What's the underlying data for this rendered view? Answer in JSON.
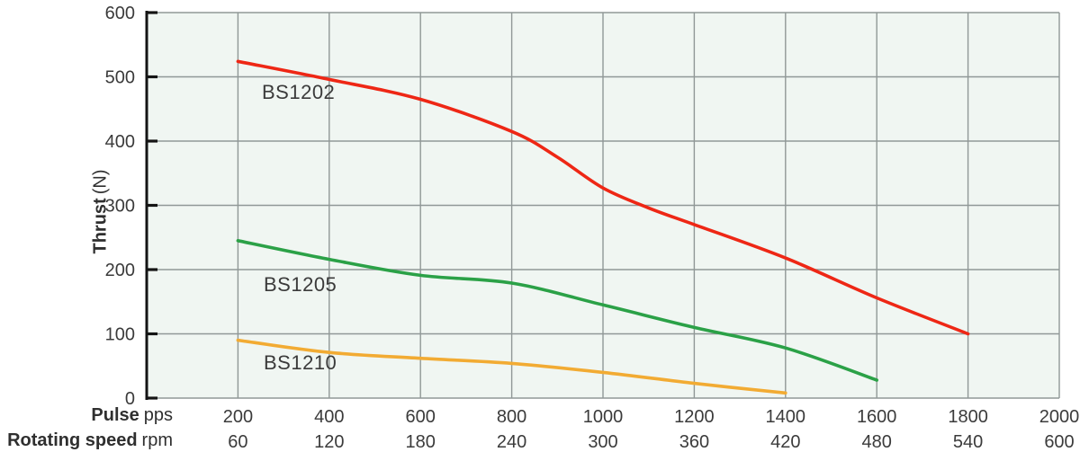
{
  "chart_data": {
    "type": "line",
    "title": "",
    "grid": true,
    "legend_position": "inline-labels",
    "x_axis": {
      "range": [
        0,
        2000
      ],
      "rows": [
        {
          "label": "Pulse",
          "unit": "pps",
          "ticks": [
            200,
            400,
            600,
            800,
            1000,
            1200,
            1400,
            1600,
            1800,
            2000
          ]
        },
        {
          "label": "Rotating speed",
          "unit": "rpm",
          "ticks": [
            60,
            120,
            180,
            240,
            300,
            360,
            420,
            480,
            540,
            600
          ]
        }
      ]
    },
    "y_axis": {
      "label": "Thrust",
      "unit": "(N)",
      "range": [
        0,
        600
      ],
      "ticks": [
        0,
        100,
        200,
        300,
        400,
        500,
        600
      ]
    },
    "series": [
      {
        "name": "BS1202",
        "color": "#ee2715",
        "points": [
          [
            200,
            524
          ],
          [
            400,
            496
          ],
          [
            600,
            465
          ],
          [
            800,
            415
          ],
          [
            900,
            375
          ],
          [
            1000,
            327
          ],
          [
            1100,
            296
          ],
          [
            1200,
            270
          ],
          [
            1400,
            218
          ],
          [
            1600,
            156
          ],
          [
            1800,
            100
          ]
        ]
      },
      {
        "name": "BS1205",
        "color": "#2ba147",
        "points": [
          [
            200,
            245
          ],
          [
            400,
            216
          ],
          [
            600,
            191
          ],
          [
            800,
            179
          ],
          [
            1000,
            145
          ],
          [
            1200,
            110
          ],
          [
            1400,
            78
          ],
          [
            1600,
            28
          ]
        ]
      },
      {
        "name": "BS1210",
        "color": "#f2ab33",
        "points": [
          [
            200,
            90
          ],
          [
            400,
            71
          ],
          [
            600,
            62
          ],
          [
            800,
            54
          ],
          [
            1000,
            40
          ],
          [
            1200,
            23
          ],
          [
            1400,
            8
          ]
        ]
      }
    ],
    "colors": {
      "plot_bg": "#f0f6f2",
      "grid": "#909897",
      "axis": "#141414",
      "text": "#3b3b3b"
    }
  }
}
